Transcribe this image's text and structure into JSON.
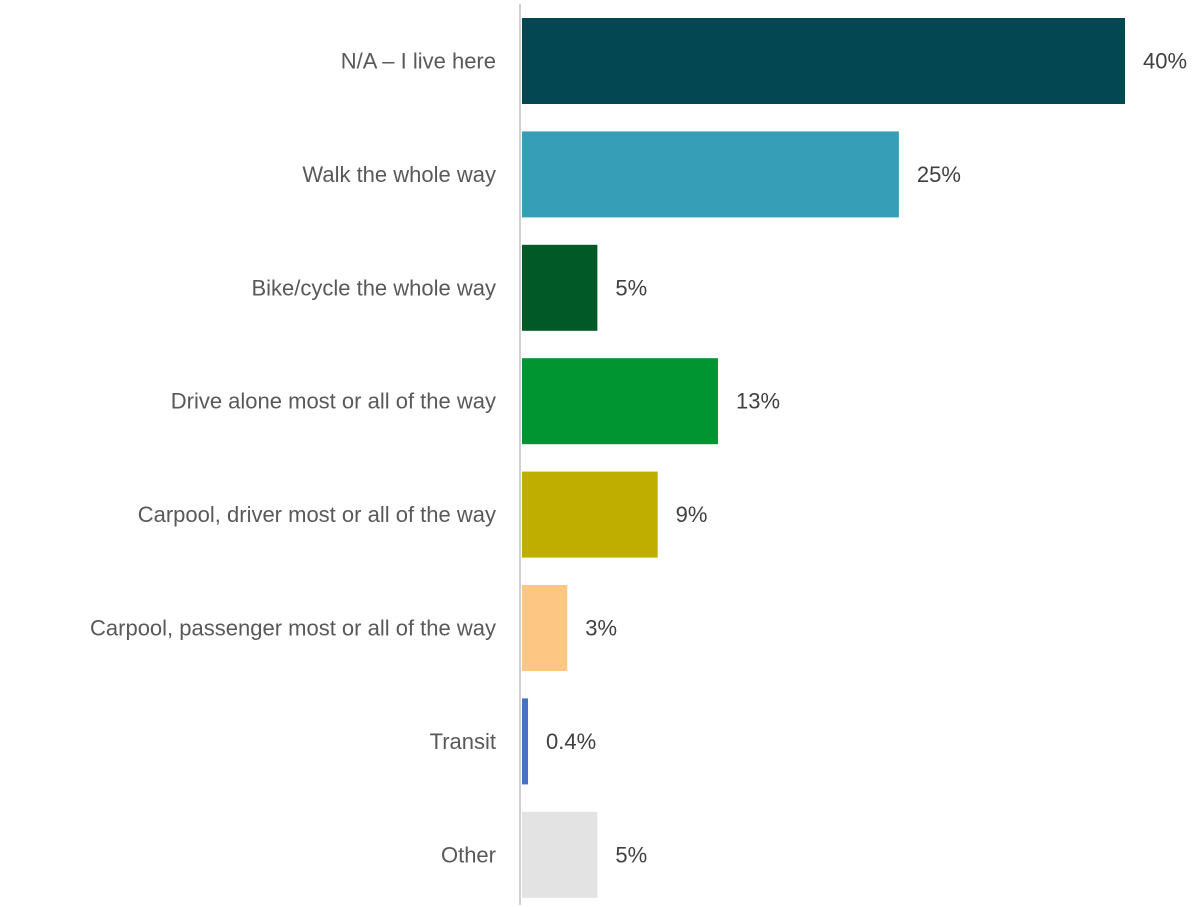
{
  "chart_data": {
    "type": "bar",
    "orientation": "horizontal",
    "categories": [
      "N/A – I live here",
      "Walk the whole way",
      "Bike/cycle the whole way",
      "Drive alone most or all of the way",
      "Carpool, driver most or all of the way",
      "Carpool, passenger most or all of the way",
      "Transit",
      "Other"
    ],
    "values": [
      40,
      25,
      5,
      13,
      9,
      3,
      0.4,
      5
    ],
    "value_labels": [
      "40%",
      "25%",
      "5%",
      "13%",
      "9%",
      "3%",
      "0.4%",
      "5%"
    ],
    "colors": [
      "#034752",
      "#379EB7",
      "#005926",
      "#009530",
      "#BFAD00",
      "#FEC683",
      "#4472C4",
      "#E3E3E3"
    ],
    "title": "",
    "xlabel": "",
    "ylabel": "",
    "xlim": [
      0,
      40
    ],
    "grid": false,
    "legend": "none"
  }
}
